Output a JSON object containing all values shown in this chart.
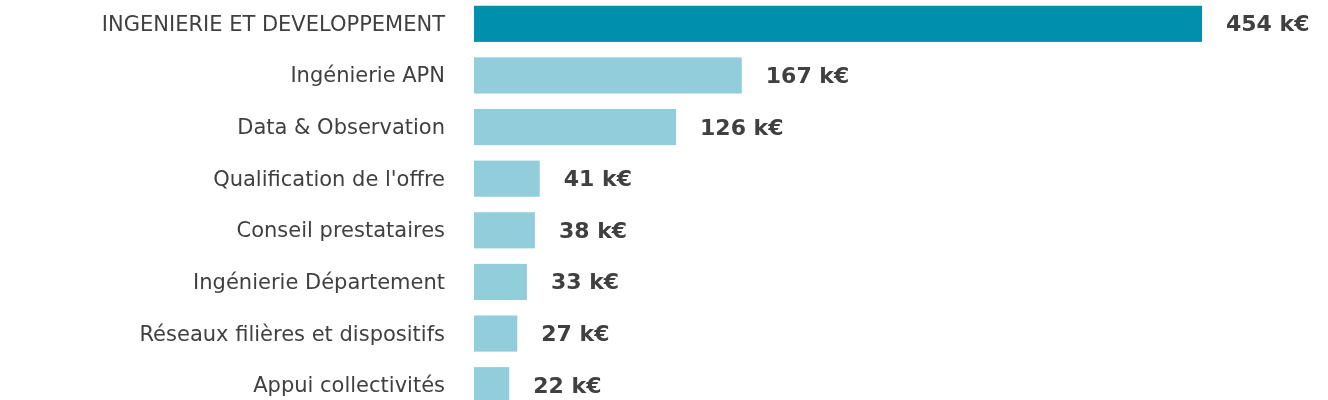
{
  "chart_data": {
    "type": "bar",
    "orientation": "horizontal",
    "categories": [
      "INGENIERIE ET DEVELOPPEMENT",
      "Ingénierie APN",
      "Data & Observation",
      "Qualification de l'offre",
      "Conseil prestataires",
      "Ingénierie Département",
      "Réseaux filières et dispositifs",
      "Appui collectivités"
    ],
    "values": [
      454,
      167,
      126,
      41,
      38,
      33,
      27,
      22
    ],
    "colors": [
      "#0090ad",
      "#92cddc",
      "#92cddc",
      "#92cddc",
      "#92cddc",
      "#92cddc",
      "#92cddc",
      "#92cddc"
    ],
    "value_labels": [
      "454 k€",
      "167 k€",
      "126 k€",
      "41 k€",
      "38 k€",
      "33 k€",
      "27 k€",
      "22 k€"
    ]
  }
}
